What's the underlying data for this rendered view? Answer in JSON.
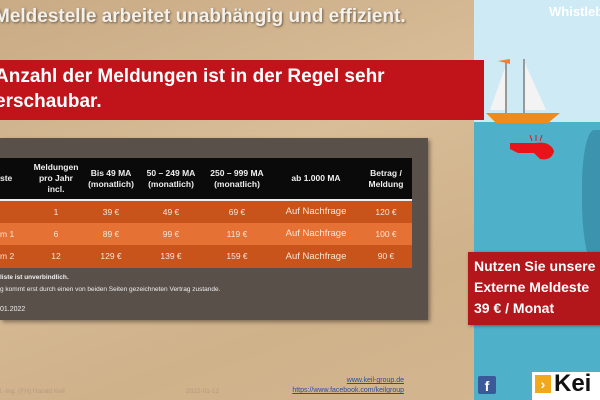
{
  "title": "Meldestelle arbeitet unabhängig und effizient.",
  "banner": {
    "line1": "Anzahl der Meldungen ist in der Regel sehr",
    "line2": "erschaubar."
  },
  "side": {
    "title": "Whistleb"
  },
  "table": {
    "headers": [
      "ste",
      "Meldungen pro Jahr incl.",
      "Bis 49 MA (monatlich)",
      "50 – 249 MA (monatlich)",
      "250 – 999 MA (monatlich)",
      "ab 1.000 MA",
      "Betrag / Meldung"
    ],
    "rows": [
      [
        "",
        "1",
        "39 €",
        "49 €",
        "69 €",
        "Auf Nachfrage",
        "120 €"
      ],
      [
        "m 1",
        "6",
        "89 €",
        "99 €",
        "119 €",
        "Auf Nachfrage",
        "100 €"
      ],
      [
        "m 2",
        "12",
        "129 €",
        "139 €",
        "159 €",
        "Auf Nachfrage",
        "90 €"
      ]
    ]
  },
  "notes": {
    "line1": "liste ist unverbindlich.",
    "line2": "g kommt erst durch einen von beiden Seiten gezeichneten Vertrag zustande.",
    "date": "01.2022"
  },
  "cta": {
    "line1": "Nutzen Sie unsere",
    "line2": "Externe Meldeste",
    "line3": "39 € / Monat"
  },
  "footer": {
    "author": "l.-Ing. (FH) Harald Keil",
    "date": "2022-01-12",
    "website": "www.keil-group.de",
    "facebook": "https://www.facebook.com/keilgroup",
    "logo": "Keil"
  }
}
